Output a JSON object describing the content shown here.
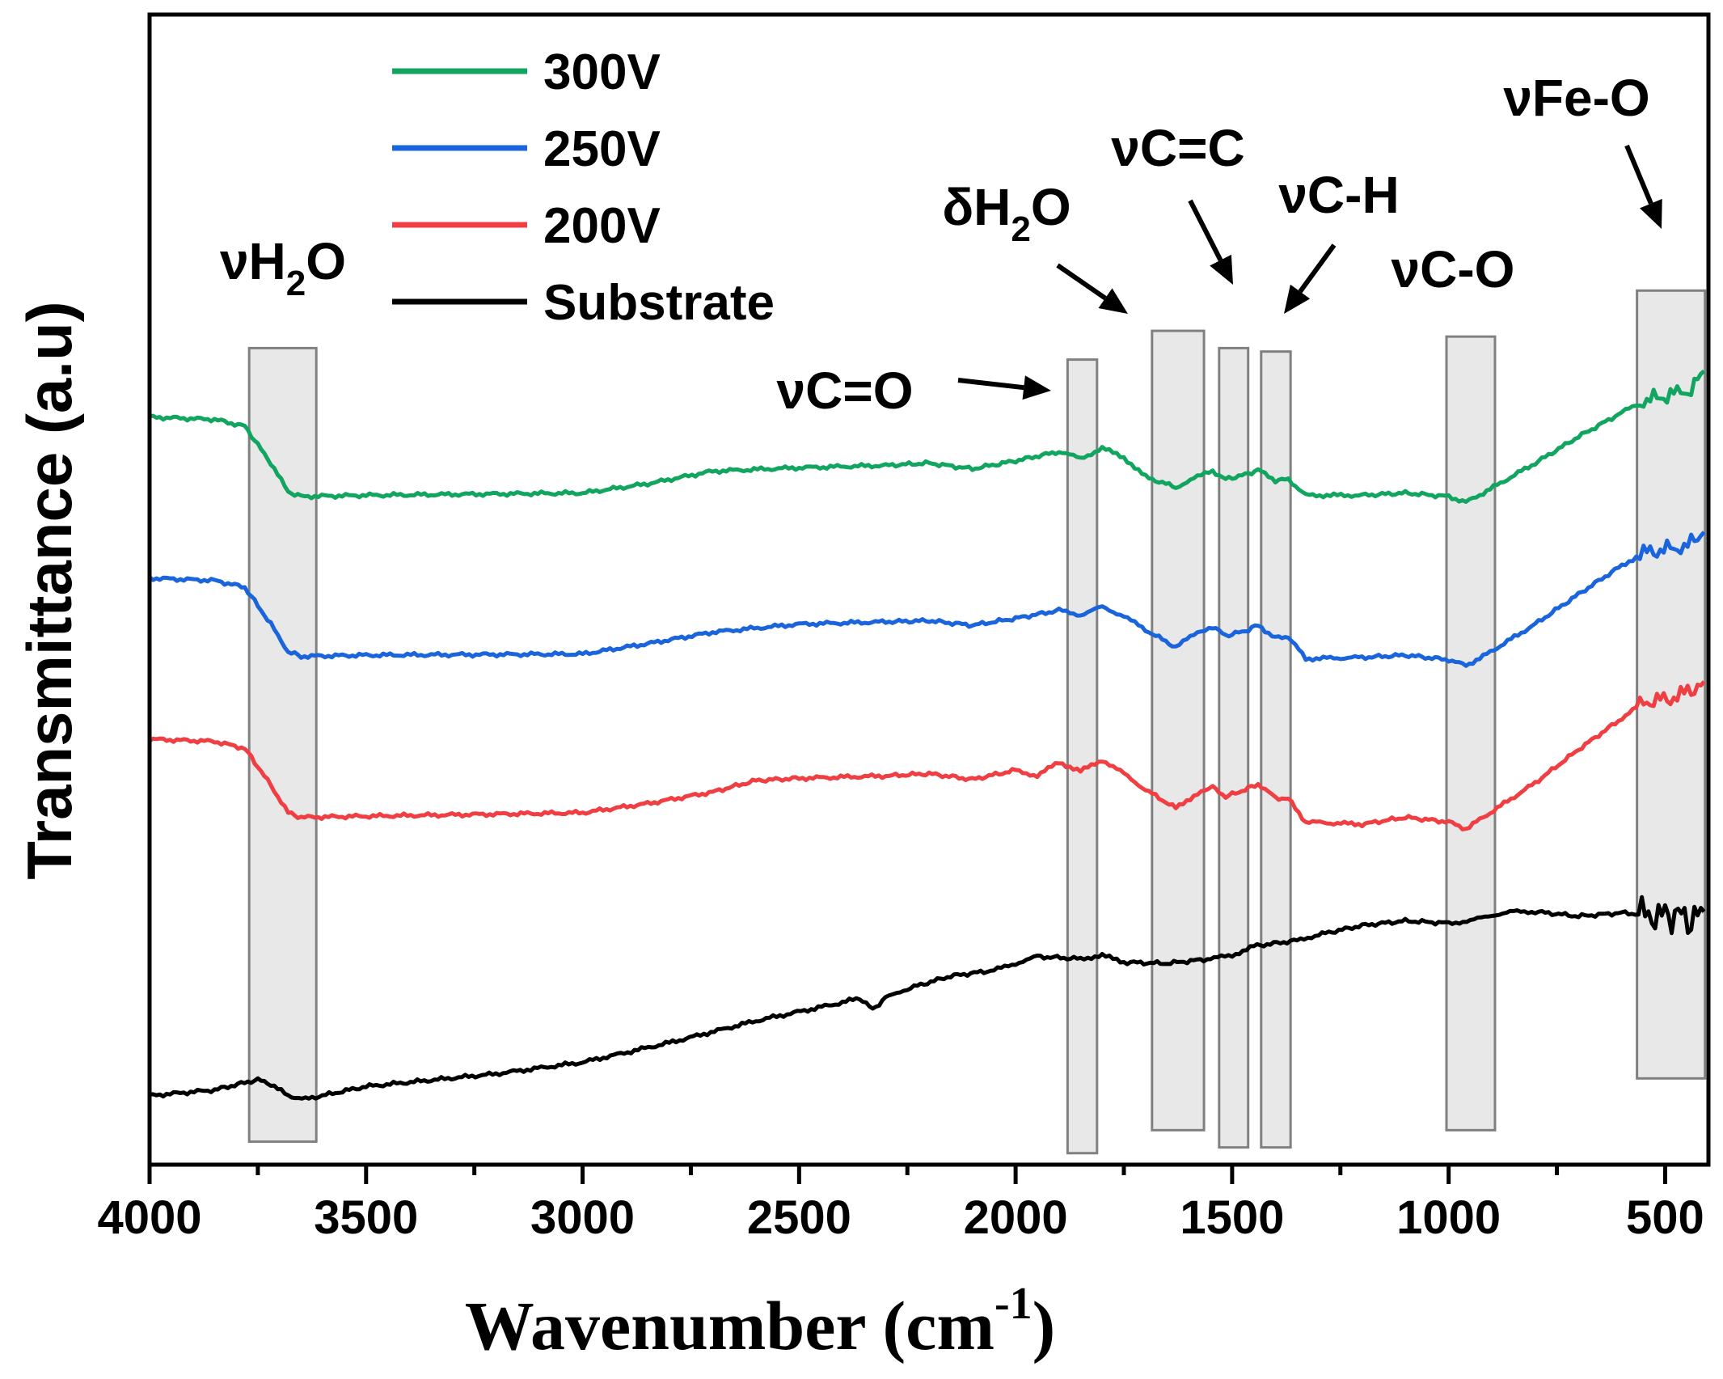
{
  "chart_data": {
    "type": "line",
    "title": "",
    "xlabel": "Wavenumber (cm",
    "xlabel_sup": "-1",
    "xlabel_close": ")",
    "ylabel": "Transmittance (a.u)",
    "xlim": [
      4000,
      400
    ],
    "ylim": [
      0,
      100
    ],
    "x_reversed": true,
    "x_ticks": [
      4000,
      3500,
      3000,
      2500,
      2000,
      1500,
      1000,
      500
    ],
    "x_tick_labels": [
      "4000",
      "3500",
      "3000",
      "2500",
      "2000",
      "1500",
      "1000",
      "500"
    ],
    "legend_position": "top-left",
    "series": [
      {
        "name": "300V",
        "color": "#11a55f",
        "points": [
          [
            4000,
            65
          ],
          [
            3850,
            64.8
          ],
          [
            3780,
            64.2
          ],
          [
            3720,
            61
          ],
          [
            3680,
            58.5
          ],
          [
            3650,
            58.1
          ],
          [
            3500,
            58.2
          ],
          [
            3000,
            58.4
          ],
          [
            2850,
            59.2
          ],
          [
            2700,
            60.3
          ],
          [
            2500,
            60.6
          ],
          [
            2300,
            60.8
          ],
          [
            2200,
            61
          ],
          [
            2100,
            60.5
          ],
          [
            2000,
            61.2
          ],
          [
            1900,
            62
          ],
          [
            1850,
            61.4
          ],
          [
            1800,
            62.3
          ],
          [
            1750,
            61.5
          ],
          [
            1700,
            59.8
          ],
          [
            1630,
            58.9
          ],
          [
            1580,
            59.8
          ],
          [
            1545,
            60.3
          ],
          [
            1515,
            59.6
          ],
          [
            1470,
            60
          ],
          [
            1440,
            60.4
          ],
          [
            1400,
            59.5
          ],
          [
            1370,
            59.6
          ],
          [
            1330,
            58.2
          ],
          [
            1200,
            58.2
          ],
          [
            1100,
            58.4
          ],
          [
            1000,
            58.1
          ],
          [
            960,
            57.6
          ],
          [
            920,
            58.4
          ],
          [
            800,
            61
          ],
          [
            700,
            63.3
          ],
          [
            600,
            65.4
          ],
          [
            550,
            66.4
          ],
          [
            480,
            67
          ],
          [
            440,
            67.4
          ],
          [
            410,
            69
          ]
        ]
      },
      {
        "name": "250V",
        "color": "#1a64dc",
        "points": [
          [
            4000,
            51
          ],
          [
            3850,
            50.8
          ],
          [
            3780,
            50.2
          ],
          [
            3720,
            47
          ],
          [
            3680,
            44.6
          ],
          [
            3650,
            44.2
          ],
          [
            3500,
            44.3
          ],
          [
            3000,
            44.4
          ],
          [
            2850,
            45.3
          ],
          [
            2700,
            46.3
          ],
          [
            2500,
            47
          ],
          [
            2300,
            47.2
          ],
          [
            2200,
            47.3
          ],
          [
            2100,
            46.9
          ],
          [
            2000,
            47.5
          ],
          [
            1900,
            48.2
          ],
          [
            1850,
            47.8
          ],
          [
            1800,
            48.5
          ],
          [
            1750,
            47.7
          ],
          [
            1700,
            46.5
          ],
          [
            1630,
            45
          ],
          [
            1580,
            46.3
          ],
          [
            1545,
            46.8
          ],
          [
            1515,
            46
          ],
          [
            1470,
            46.4
          ],
          [
            1440,
            46.9
          ],
          [
            1400,
            45.8
          ],
          [
            1370,
            45.9
          ],
          [
            1330,
            44
          ],
          [
            1200,
            44.1
          ],
          [
            1100,
            44.3
          ],
          [
            1000,
            43.9
          ],
          [
            960,
            43.4
          ],
          [
            920,
            44.2
          ],
          [
            800,
            47
          ],
          [
            700,
            49.6
          ],
          [
            600,
            52.1
          ],
          [
            550,
            53.2
          ],
          [
            480,
            53.6
          ],
          [
            440,
            54
          ],
          [
            410,
            55
          ]
        ]
      },
      {
        "name": "200V",
        "color": "#f03f43",
        "points": [
          [
            4000,
            37
          ],
          [
            3850,
            36.8
          ],
          [
            3780,
            36.2
          ],
          [
            3720,
            33
          ],
          [
            3680,
            30.6
          ],
          [
            3650,
            30.2
          ],
          [
            3500,
            30.3
          ],
          [
            3000,
            30.6
          ],
          [
            2850,
            31.4
          ],
          [
            2700,
            32.4
          ],
          [
            2600,
            33.4
          ],
          [
            2500,
            33.6
          ],
          [
            2300,
            33.8
          ],
          [
            2200,
            34
          ],
          [
            2100,
            33.5
          ],
          [
            2000,
            34.3
          ],
          [
            1950,
            33.8
          ],
          [
            1900,
            35
          ],
          [
            1850,
            34.2
          ],
          [
            1800,
            35.2
          ],
          [
            1750,
            34
          ],
          [
            1700,
            32.6
          ],
          [
            1630,
            31
          ],
          [
            1580,
            32.3
          ],
          [
            1545,
            32.8
          ],
          [
            1515,
            32
          ],
          [
            1470,
            32.6
          ],
          [
            1440,
            33.1
          ],
          [
            1400,
            31.9
          ],
          [
            1370,
            31.8
          ],
          [
            1330,
            29.8
          ],
          [
            1200,
            29.6
          ],
          [
            1100,
            30.2
          ],
          [
            1000,
            29.8
          ],
          [
            960,
            29.2
          ],
          [
            920,
            30.2
          ],
          [
            800,
            33.2
          ],
          [
            700,
            36.1
          ],
          [
            600,
            38.8
          ],
          [
            550,
            40.2
          ],
          [
            480,
            40.6
          ],
          [
            440,
            41.2
          ],
          [
            410,
            42
          ]
        ]
      },
      {
        "name": "Substrate",
        "color": "#000000",
        "points": [
          [
            4000,
            6
          ],
          [
            3850,
            6.5
          ],
          [
            3750,
            7.4
          ],
          [
            3720,
            7
          ],
          [
            3680,
            6
          ],
          [
            3640,
            5.7
          ],
          [
            3500,
            6.8
          ],
          [
            3200,
            7.9
          ],
          [
            3000,
            8.9
          ],
          [
            2800,
            10.6
          ],
          [
            2600,
            12.5
          ],
          [
            2400,
            14.1
          ],
          [
            2360,
            14.5
          ],
          [
            2330,
            13.5
          ],
          [
            2300,
            14.5
          ],
          [
            2250,
            15.3
          ],
          [
            2150,
            16.4
          ],
          [
            2050,
            16.9
          ],
          [
            2000,
            17.5
          ],
          [
            1950,
            18.1
          ],
          [
            1850,
            17.9
          ],
          [
            1800,
            18.2
          ],
          [
            1750,
            17.6
          ],
          [
            1650,
            17.5
          ],
          [
            1550,
            17.9
          ],
          [
            1500,
            18.2
          ],
          [
            1450,
            19
          ],
          [
            1350,
            19.5
          ],
          [
            1300,
            20
          ],
          [
            1200,
            20.8
          ],
          [
            1100,
            21.2
          ],
          [
            1000,
            21
          ],
          [
            950,
            21.2
          ],
          [
            900,
            21.7
          ],
          [
            850,
            22
          ],
          [
            800,
            22
          ],
          [
            700,
            21.6
          ],
          [
            600,
            21.9
          ],
          [
            500,
            21.6
          ],
          [
            470,
            21.8
          ],
          [
            440,
            21.2
          ],
          [
            410,
            22
          ]
        ]
      }
    ],
    "annotations": [
      {
        "id": "vH2O",
        "text": "νH",
        "sub": "2",
        "tail": "O",
        "band": [
          3770,
          3615
        ],
        "box_ylim": [
          2,
          71
        ]
      },
      {
        "id": "vCO_double",
        "text": "νC=O",
        "band": [
          1880,
          1812
        ],
        "box_ylim": [
          1,
          70
        ]
      },
      {
        "id": "dH2O",
        "text": "δH",
        "sub": "2",
        "tail": "O",
        "band": [
          1685,
          1565
        ],
        "box_ylim": [
          3,
          72.5
        ]
      },
      {
        "id": "vCC",
        "text": "νC=C",
        "band": [
          1530,
          1463
        ],
        "box_ylim": [
          1.5,
          71
        ]
      },
      {
        "id": "vCH",
        "text": "νC-H",
        "band": [
          1433,
          1365
        ],
        "box_ylim": [
          1.5,
          70.7
        ]
      },
      {
        "id": "vCO",
        "text": "νC-O",
        "band": [
          1005,
          893
        ],
        "box_ylim": [
          3,
          72
        ]
      },
      {
        "id": "vFeO",
        "text": "νFe-O",
        "band": [
          565,
          408
        ],
        "box_ylim": [
          7.5,
          76
        ]
      }
    ]
  }
}
